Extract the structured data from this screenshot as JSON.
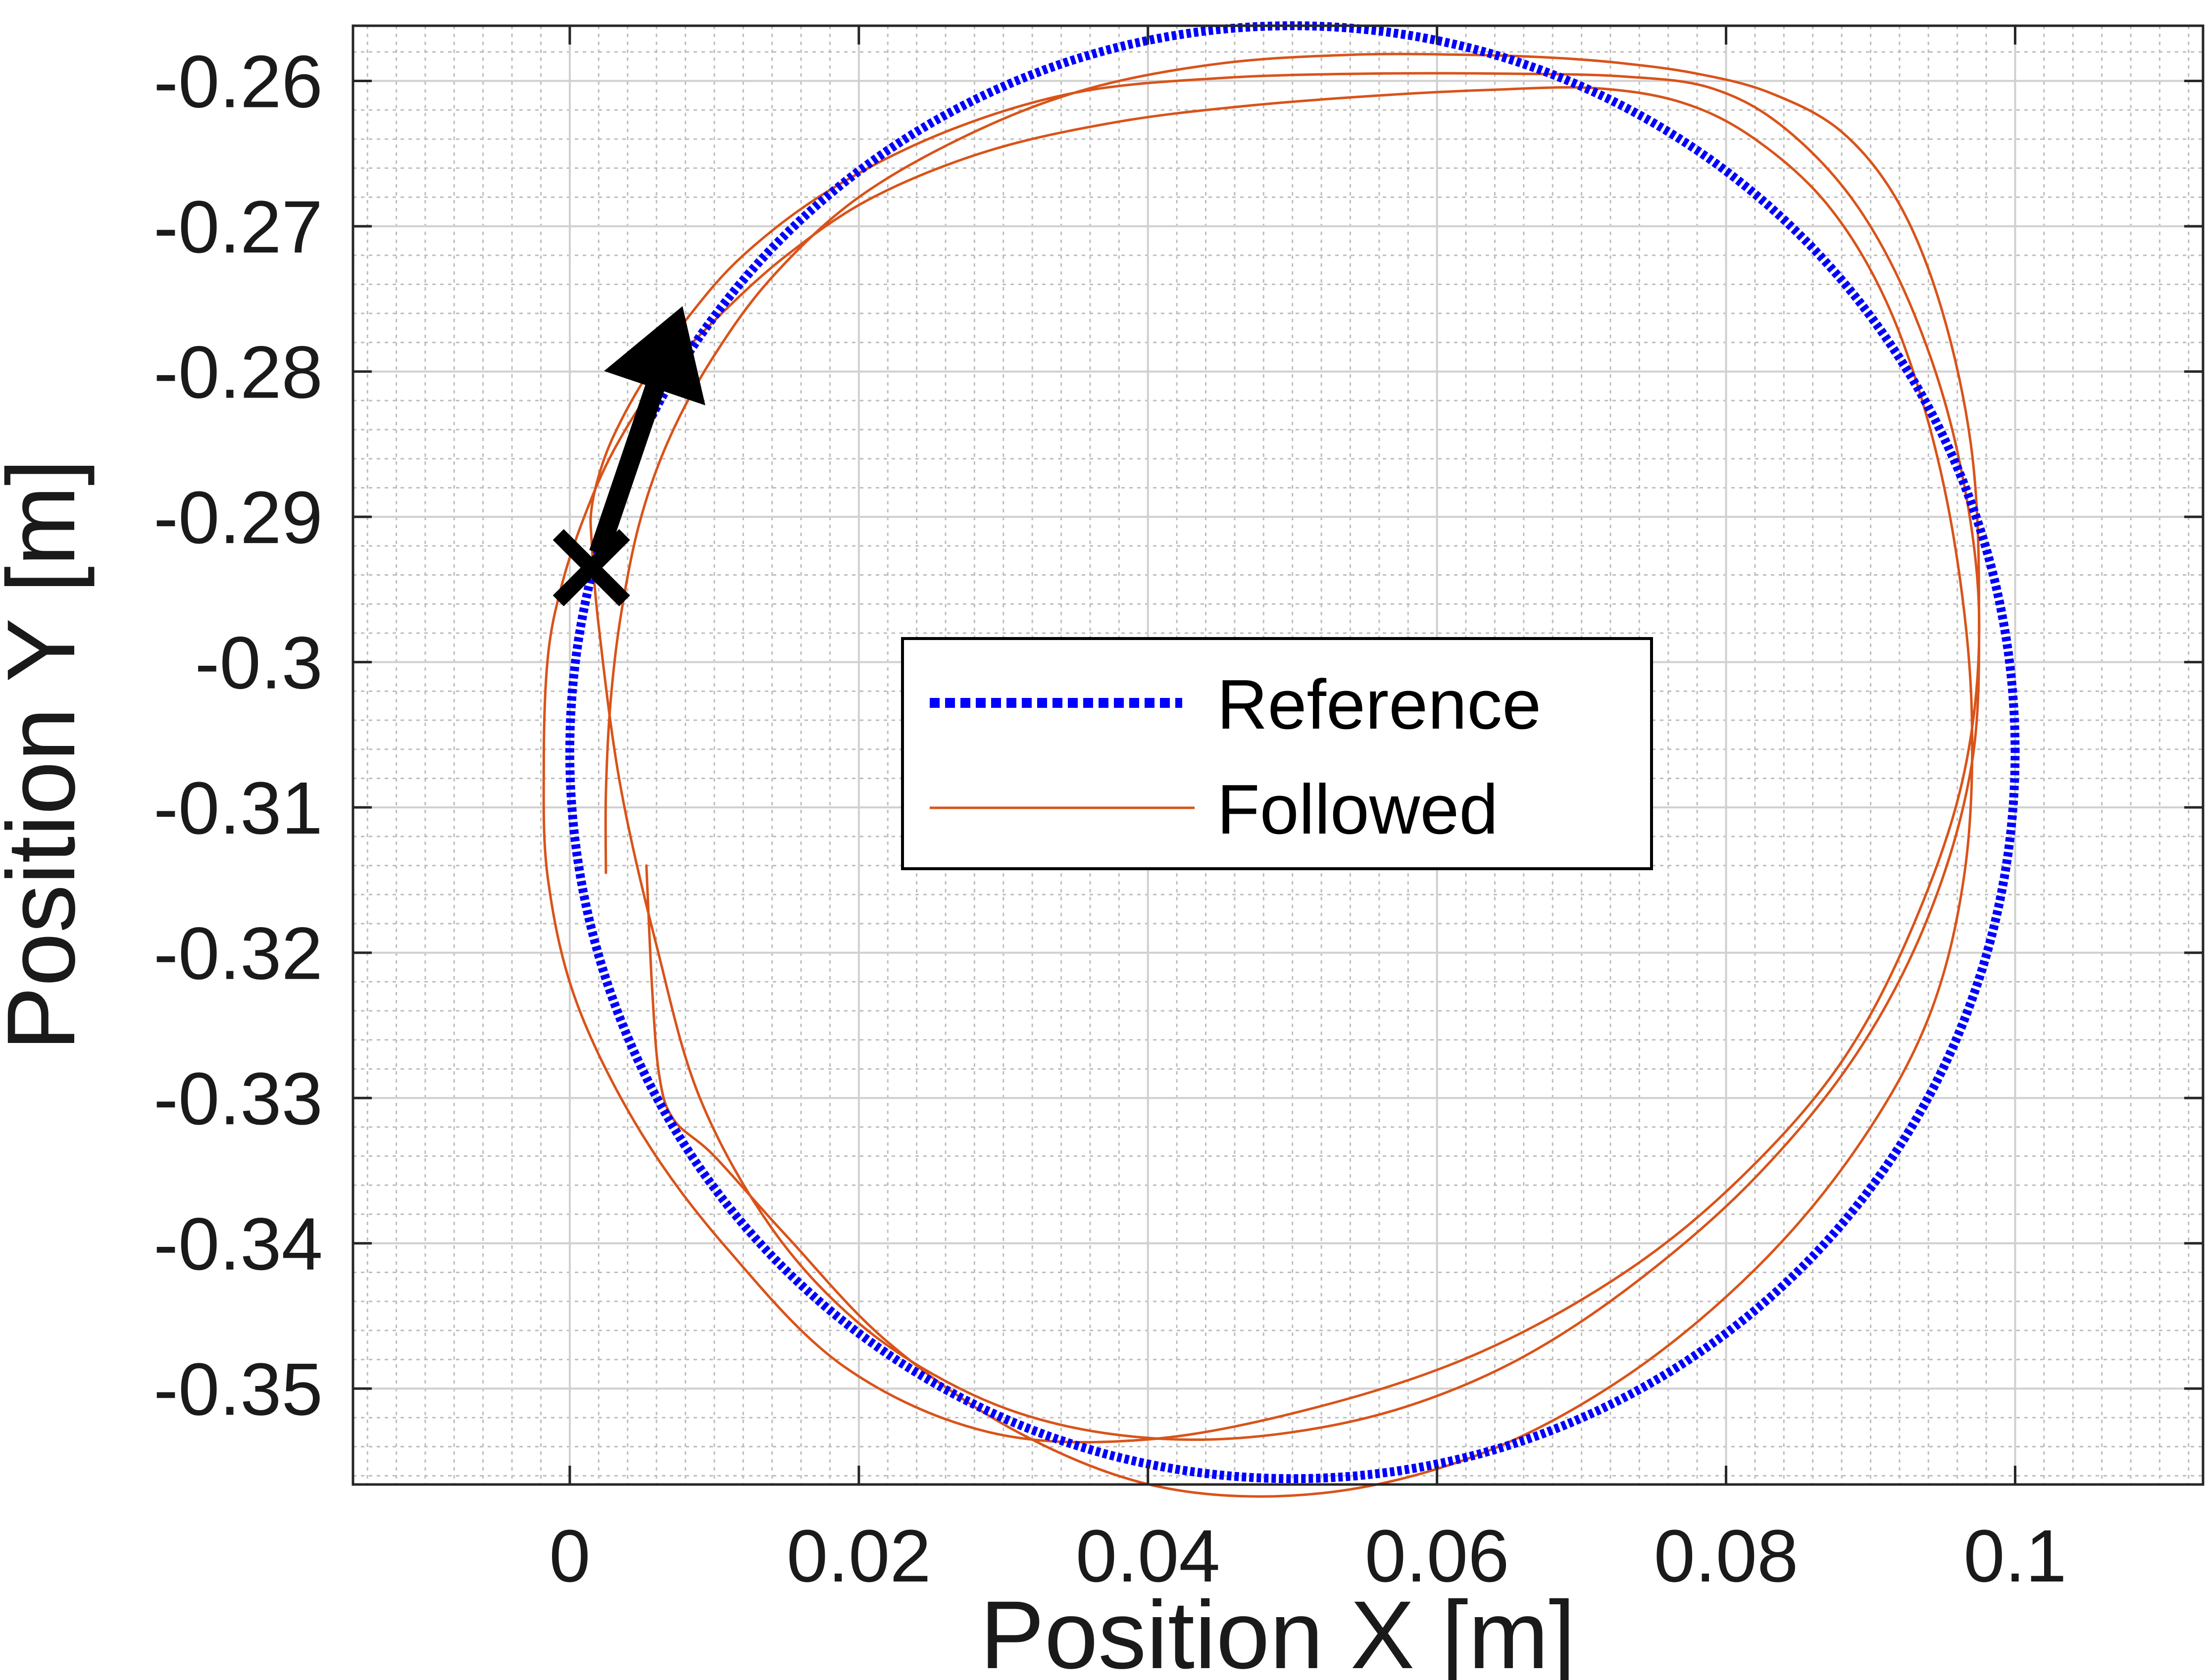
{
  "chart_data": {
    "type": "line",
    "title": "",
    "xlabel": "Position X [m]",
    "ylabel": "Position Y [m]",
    "xlim": [
      -0.015,
      0.113
    ],
    "ylim": [
      -0.3566,
      -0.2562
    ],
    "xticks": [
      0,
      0.02,
      0.04,
      0.06,
      0.08,
      0.1
    ],
    "xtick_labels": [
      "0",
      "0.02",
      "0.04",
      "0.06",
      "0.08",
      "0.1"
    ],
    "yticks": [
      -0.26,
      -0.27,
      -0.28,
      -0.29,
      -0.3,
      -0.31,
      -0.32,
      -0.33,
      -0.34,
      -0.35
    ],
    "ytick_labels": [
      "-0.26",
      "-0.27",
      "-0.28",
      "-0.29",
      "-0.3",
      "-0.31",
      "-0.32",
      "-0.33",
      "-0.34",
      "-0.35"
    ],
    "grid": true,
    "minor_grid": true,
    "legend_position": "center",
    "series": [
      {
        "name": "Reference",
        "style": "dotted",
        "color": "#0000ff",
        "shape": "circle",
        "center": [
          0.05,
          -0.3062
        ],
        "radius_x": 0.05,
        "radius_y": 0.05
      },
      {
        "name": "Followed",
        "style": "solid",
        "color": "#d95319",
        "x": [
          0.0025,
          0.0025,
          0.0028,
          0.0035,
          0.0048,
          0.0068,
          0.0098,
          0.014,
          0.02,
          0.028,
          0.036,
          0.045,
          0.054,
          0.062,
          0.068,
          0.073,
          0.078,
          0.083,
          0.088,
          0.092,
          0.095,
          0.097,
          0.0975,
          0.097,
          0.094,
          0.089,
          0.082,
          0.074,
          0.066,
          0.058,
          0.05,
          0.042,
          0.034,
          0.027,
          0.02,
          0.014,
          0.009,
          0.006,
          0.0035,
          0.002,
          0.0015,
          0.0015,
          0.002,
          0.003,
          0.005,
          0.008,
          0.012,
          0.018,
          0.026,
          0.035,
          0.045,
          0.055,
          0.065,
          0.073,
          0.079,
          0.084,
          0.089,
          0.093,
          0.096,
          0.0975,
          0.0965,
          0.093,
          0.088,
          0.081,
          0.073,
          0.063,
          0.052,
          0.04,
          0.029,
          0.019,
          0.011,
          0.005,
          0.0005,
          -0.0015,
          -0.0018,
          -0.0015,
          -0.0005,
          0.001,
          0.003,
          0.006,
          0.01,
          0.015,
          0.021,
          0.029,
          0.038,
          0.047,
          0.056,
          0.064,
          0.071,
          0.077,
          0.082,
          0.087,
          0.091,
          0.094,
          0.096,
          0.097,
          0.0965,
          0.094,
          0.089,
          0.082,
          0.073,
          0.063,
          0.052,
          0.041,
          0.031,
          0.022,
          0.015,
          0.01,
          0.0072,
          0.0062,
          0.0057,
          0.0053
        ],
        "y": [
          -0.3145,
          -0.309,
          -0.303,
          -0.297,
          -0.2905,
          -0.2848,
          -0.2792,
          -0.2735,
          -0.268,
          -0.2635,
          -0.2605,
          -0.2588,
          -0.2582,
          -0.2582,
          -0.2584,
          -0.2588,
          -0.2595,
          -0.2608,
          -0.2635,
          -0.2685,
          -0.276,
          -0.2855,
          -0.296,
          -0.307,
          -0.3175,
          -0.327,
          -0.3355,
          -0.3425,
          -0.3478,
          -0.3512,
          -0.353,
          -0.3535,
          -0.3525,
          -0.35,
          -0.3455,
          -0.339,
          -0.33,
          -0.3195,
          -0.3085,
          -0.2975,
          -0.2915,
          -0.2895,
          -0.2872,
          -0.2845,
          -0.2808,
          -0.2765,
          -0.272,
          -0.2675,
          -0.2635,
          -0.2608,
          -0.2598,
          -0.2595,
          -0.2595,
          -0.2597,
          -0.2605,
          -0.2632,
          -0.2685,
          -0.276,
          -0.2855,
          -0.2965,
          -0.3075,
          -0.318,
          -0.3275,
          -0.3355,
          -0.342,
          -0.3475,
          -0.3512,
          -0.3535,
          -0.353,
          -0.3485,
          -0.3405,
          -0.3325,
          -0.3235,
          -0.315,
          -0.307,
          -0.2995,
          -0.2945,
          -0.29,
          -0.2855,
          -0.2808,
          -0.2765,
          -0.272,
          -0.268,
          -0.2648,
          -0.2628,
          -0.2617,
          -0.261,
          -0.2606,
          -0.2605,
          -0.2615,
          -0.264,
          -0.2685,
          -0.275,
          -0.2835,
          -0.293,
          -0.3035,
          -0.3145,
          -0.3245,
          -0.3335,
          -0.3418,
          -0.3492,
          -0.3545,
          -0.3572,
          -0.3568,
          -0.353,
          -0.3468,
          -0.3395,
          -0.334,
          -0.3315,
          -0.3285,
          -0.3225,
          -0.314
        ]
      }
    ],
    "annotations": [
      {
        "type": "start-marker",
        "symbol": "x",
        "x": 0.0015,
        "y": -0.2935
      },
      {
        "type": "direction-arrow",
        "from": [
          0.002,
          -0.2925
        ],
        "to": [
          0.0078,
          -0.2755
        ]
      }
    ]
  },
  "legend": {
    "reference_label": "Reference",
    "followed_label": "Followed"
  }
}
